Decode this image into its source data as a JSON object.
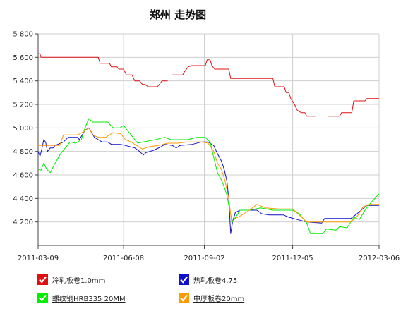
{
  "chart_data": {
    "type": "line",
    "title": "郑州 走势图",
    "xlabel": "",
    "ylabel": "",
    "ylim": [
      4000,
      5800
    ],
    "y_ticks": [
      4200,
      4400,
      4600,
      4800,
      5000,
      5200,
      5400,
      5600,
      5800
    ],
    "y_tick_labels": [
      "4 200",
      "4 400",
      "4 600",
      "4 800",
      "5 000",
      "5 200",
      "5 400",
      "5 600",
      "5 800"
    ],
    "x_range": [
      "2011-03-09",
      "2012-03-06"
    ],
    "x_ticks": [
      "2011-03-09",
      "2011-06-08",
      "2011-09-02",
      "2011-12-05",
      "2012-03-06"
    ],
    "grid": true,
    "legend_position": "bottom",
    "series": [
      {
        "name": "冷轧板卷1.0mm",
        "color": "#e01010",
        "segments": [
          [
            [
              "2011-03-09",
              5630
            ],
            [
              "2011-03-11",
              5630
            ],
            [
              "2011-03-12",
              5600
            ],
            [
              "2011-05-12",
              5600
            ],
            [
              "2011-05-14",
              5550
            ],
            [
              "2011-05-24",
              5550
            ],
            [
              "2011-05-26",
              5520
            ],
            [
              "2011-06-01",
              5520
            ],
            [
              "2011-06-03",
              5500
            ],
            [
              "2011-06-08",
              5500
            ],
            [
              "2011-06-11",
              5450
            ],
            [
              "2011-06-17",
              5450
            ],
            [
              "2011-06-20",
              5400
            ],
            [
              "2011-06-25",
              5400
            ],
            [
              "2011-06-28",
              5370
            ],
            [
              "2011-07-01",
              5370
            ],
            [
              "2011-07-04",
              5350
            ],
            [
              "2011-07-14",
              5350
            ],
            [
              "2011-07-17",
              5380
            ],
            [
              "2011-07-19",
              5400
            ],
            [
              "2011-07-25",
              5400
            ]
          ],
          [
            [
              "2011-07-29",
              5450
            ],
            [
              "2011-08-10",
              5450
            ],
            [
              "2011-08-12",
              5480
            ],
            [
              "2011-08-14",
              5500
            ],
            [
              "2011-08-16",
              5520
            ],
            [
              "2011-08-20",
              5530
            ],
            [
              "2011-09-03",
              5530
            ],
            [
              "2011-09-05",
              5580
            ],
            [
              "2011-09-08",
              5580
            ],
            [
              "2011-09-10",
              5530
            ],
            [
              "2011-09-13",
              5500
            ],
            [
              "2011-09-28",
              5500
            ],
            [
              "2011-09-30",
              5420
            ],
            [
              "2011-11-14",
              5420
            ],
            [
              "2011-11-16",
              5350
            ],
            [
              "2011-11-26",
              5350
            ],
            [
              "2011-11-28",
              5300
            ],
            [
              "2011-12-01",
              5300
            ],
            [
              "2011-12-03",
              5250
            ],
            [
              "2011-12-07",
              5200
            ],
            [
              "2011-12-10",
              5150
            ],
            [
              "2011-12-14",
              5130
            ],
            [
              "2011-12-18",
              5130
            ],
            [
              "2011-12-20",
              5100
            ],
            [
              "2011-12-30",
              5100
            ]
          ],
          [
            [
              "2012-01-11",
              5100
            ],
            [
              "2012-01-24",
              5100
            ],
            [
              "2012-01-26",
              5130
            ],
            [
              "2012-02-06",
              5130
            ],
            [
              "2012-02-08",
              5230
            ],
            [
              "2012-02-20",
              5230
            ],
            [
              "2012-02-22",
              5250
            ],
            [
              "2012-03-06",
              5250
            ]
          ]
        ]
      },
      {
        "name": "热轧板卷4.75",
        "color": "#1010c8",
        "segments": [
          [
            [
              "2011-03-09",
              4800
            ],
            [
              "2011-03-11",
              4760
            ],
            [
              "2011-03-13",
              4820
            ],
            [
              "2011-03-15",
              4900
            ],
            [
              "2011-03-17",
              4880
            ],
            [
              "2011-03-19",
              4800
            ],
            [
              "2011-03-22",
              4830
            ],
            [
              "2011-03-25",
              4830
            ],
            [
              "2011-03-27",
              4850
            ],
            [
              "2011-04-02",
              4870
            ],
            [
              "2011-04-05",
              4880
            ],
            [
              "2011-04-10",
              4920
            ],
            [
              "2011-04-20",
              4920
            ],
            [
              "2011-04-22",
              4900
            ],
            [
              "2011-04-25",
              4940
            ],
            [
              "2011-04-28",
              4980
            ],
            [
              "2011-05-02",
              5000
            ],
            [
              "2011-05-05",
              4960
            ],
            [
              "2011-05-08",
              4920
            ],
            [
              "2011-05-12",
              4900
            ],
            [
              "2011-05-16",
              4880
            ],
            [
              "2011-05-22",
              4880
            ],
            [
              "2011-05-26",
              4860
            ],
            [
              "2011-06-05",
              4860
            ],
            [
              "2011-06-10",
              4850
            ],
            [
              "2011-06-20",
              4830
            ],
            [
              "2011-06-25",
              4800
            ],
            [
              "2011-06-29",
              4770
            ],
            [
              "2011-07-02",
              4790
            ],
            [
              "2011-07-10",
              4810
            ],
            [
              "2011-07-18",
              4840
            ],
            [
              "2011-07-22",
              4860
            ],
            [
              "2011-07-30",
              4850
            ],
            [
              "2011-08-03",
              4830
            ],
            [
              "2011-08-07",
              4850
            ],
            [
              "2011-08-20",
              4860
            ],
            [
              "2011-08-30",
              4880
            ],
            [
              "2011-09-06",
              4880
            ],
            [
              "2011-09-12",
              4850
            ],
            [
              "2011-09-16",
              4780
            ],
            [
              "2011-09-20",
              4720
            ],
            [
              "2011-09-23",
              4650
            ],
            [
              "2011-09-26",
              4550
            ],
            [
              "2011-09-28",
              4400
            ],
            [
              "2011-09-30",
              4100
            ],
            [
              "2011-10-02",
              4200
            ],
            [
              "2011-10-05",
              4280
            ],
            [
              "2011-10-10",
              4300
            ],
            [
              "2011-10-20",
              4300
            ],
            [
              "2011-10-28",
              4300
            ],
            [
              "2011-11-02",
              4270
            ],
            [
              "2011-11-10",
              4260
            ],
            [
              "2011-11-25",
              4260
            ],
            [
              "2011-12-01",
              4240
            ],
            [
              "2011-12-10",
              4220
            ],
            [
              "2011-12-20",
              4200
            ],
            [
              "2012-01-05",
              4190
            ],
            [
              "2012-01-08",
              4230
            ],
            [
              "2012-01-28",
              4230
            ],
            [
              "2012-02-05",
              4230
            ],
            [
              "2012-02-10",
              4260
            ],
            [
              "2012-02-16",
              4300
            ],
            [
              "2012-02-22",
              4340
            ],
            [
              "2012-03-06",
              4340
            ]
          ]
        ]
      },
      {
        "name": "螺纹钢HRB335 20MM",
        "color": "#00ee00",
        "segments": [
          [
            [
              "2011-03-09",
              4650
            ],
            [
              "2011-03-12",
              4640
            ],
            [
              "2011-03-15",
              4700
            ],
            [
              "2011-03-18",
              4650
            ],
            [
              "2011-03-22",
              4620
            ],
            [
              "2011-03-27",
              4700
            ],
            [
              "2011-04-02",
              4780
            ],
            [
              "2011-04-07",
              4830
            ],
            [
              "2011-04-12",
              4880
            ],
            [
              "2011-04-18",
              4870
            ],
            [
              "2011-04-24",
              4900
            ],
            [
              "2011-04-28",
              5000
            ],
            [
              "2011-05-02",
              5080
            ],
            [
              "2011-05-06",
              5050
            ],
            [
              "2011-05-22",
              5050
            ],
            [
              "2011-05-28",
              5000
            ],
            [
              "2011-06-04",
              5000
            ],
            [
              "2011-06-08",
              5020
            ],
            [
              "2011-06-12",
              4980
            ],
            [
              "2011-06-18",
              4920
            ],
            [
              "2011-06-23",
              4870
            ],
            [
              "2011-06-29",
              4880
            ],
            [
              "2011-07-05",
              4890
            ],
            [
              "2011-07-12",
              4900
            ],
            [
              "2011-07-22",
              4920
            ],
            [
              "2011-07-28",
              4900
            ],
            [
              "2011-08-05",
              4900
            ],
            [
              "2011-08-15",
              4900
            ],
            [
              "2011-08-25",
              4920
            ],
            [
              "2011-09-03",
              4920
            ],
            [
              "2011-09-08",
              4880
            ],
            [
              "2011-09-12",
              4750
            ],
            [
              "2011-09-16",
              4620
            ],
            [
              "2011-09-20",
              4560
            ],
            [
              "2011-09-23",
              4500
            ],
            [
              "2011-09-26",
              4430
            ],
            [
              "2011-09-29",
              4300
            ],
            [
              "2011-10-02",
              4200
            ],
            [
              "2011-10-06",
              4250
            ],
            [
              "2011-10-10",
              4300
            ],
            [
              "2011-10-20",
              4300
            ],
            [
              "2011-11-01",
              4320
            ],
            [
              "2011-11-14",
              4300
            ],
            [
              "2011-11-25",
              4300
            ],
            [
              "2011-12-05",
              4300
            ],
            [
              "2011-12-12",
              4270
            ],
            [
              "2011-12-20",
              4190
            ],
            [
              "2011-12-24",
              4100
            ],
            [
              "2012-01-06",
              4100
            ],
            [
              "2012-01-10",
              4140
            ],
            [
              "2012-01-20",
              4130
            ],
            [
              "2012-01-24",
              4160
            ],
            [
              "2012-02-01",
              4150
            ],
            [
              "2012-02-08",
              4240
            ],
            [
              "2012-02-14",
              4220
            ],
            [
              "2012-02-20",
              4300
            ],
            [
              "2012-02-27",
              4370
            ],
            [
              "2012-03-06",
              4440
            ]
          ]
        ]
      },
      {
        "name": "中厚板卷20mm",
        "color": "#ff9900",
        "segments": [
          [
            [
              "2011-03-09",
              4850
            ],
            [
              "2011-03-20",
              4850
            ],
            [
              "2011-04-01",
              4850
            ],
            [
              "2011-04-05",
              4940
            ],
            [
              "2011-04-20",
              4940
            ],
            [
              "2011-04-27",
              4970
            ],
            [
              "2011-05-02",
              5000
            ],
            [
              "2011-05-06",
              4940
            ],
            [
              "2011-05-12",
              4920
            ],
            [
              "2011-05-20",
              4920
            ],
            [
              "2011-05-28",
              4960
            ],
            [
              "2011-06-05",
              4950
            ],
            [
              "2011-06-10",
              4900
            ],
            [
              "2011-06-16",
              4880
            ],
            [
              "2011-06-22",
              4850
            ],
            [
              "2011-06-28",
              4820
            ],
            [
              "2011-07-05",
              4840
            ],
            [
              "2011-07-15",
              4850
            ],
            [
              "2011-07-25",
              4870
            ],
            [
              "2011-08-05",
              4870
            ],
            [
              "2011-08-15",
              4880
            ],
            [
              "2011-08-30",
              4880
            ],
            [
              "2011-09-06",
              4870
            ],
            [
              "2011-09-12",
              4800
            ],
            [
              "2011-09-16",
              4700
            ],
            [
              "2011-09-20",
              4650
            ],
            [
              "2011-09-24",
              4550
            ],
            [
              "2011-09-28",
              4400
            ],
            [
              "2011-10-01",
              4200
            ],
            [
              "2011-10-05",
              4230
            ],
            [
              "2011-10-10",
              4250
            ],
            [
              "2011-10-20",
              4300
            ],
            [
              "2011-10-28",
              4350
            ],
            [
              "2011-11-06",
              4320
            ],
            [
              "2011-11-20",
              4310
            ],
            [
              "2011-12-05",
              4310
            ],
            [
              "2011-12-12",
              4260
            ],
            [
              "2011-12-20",
              4200
            ],
            [
              "2012-01-10",
              4200
            ],
            [
              "2012-01-20",
              4200
            ],
            [
              "2012-02-05",
              4200
            ],
            [
              "2012-02-12",
              4250
            ],
            [
              "2012-02-18",
              4330
            ],
            [
              "2012-02-25",
              4350
            ],
            [
              "2012-03-06",
              4350
            ]
          ]
        ]
      }
    ]
  }
}
